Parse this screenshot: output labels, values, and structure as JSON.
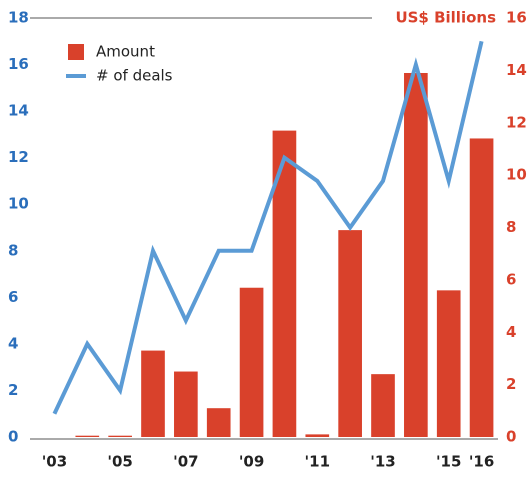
{
  "chart_data": {
    "type": "bar_line",
    "right_axis_label": "US$ Billions",
    "categories": [
      "'03",
      null,
      "'05",
      null,
      "'07",
      null,
      "'09",
      null,
      "'11",
      null,
      "'13",
      null,
      "'15",
      "'16"
    ],
    "series": [
      {
        "name": "Amount",
        "color": "#d9412b",
        "axis": "y2",
        "values": [
          0,
          0.05,
          0.05,
          3.3,
          2.5,
          1.1,
          5.7,
          11.7,
          0.1,
          7.9,
          2.4,
          13.9,
          5.6,
          11.4
        ]
      },
      {
        "name": "# of deals",
        "color": "#5b9bd5",
        "axis": "y",
        "values": [
          1,
          4,
          2,
          8,
          5,
          8,
          8,
          12,
          11,
          9,
          11,
          16,
          11,
          17
        ]
      }
    ],
    "ylim": [
      0,
      18
    ],
    "yticks": [
      0,
      2,
      4,
      6,
      8,
      10,
      12,
      14,
      16,
      18
    ],
    "y2lim": [
      0,
      16
    ],
    "y2ticks": [
      0,
      2,
      4,
      6,
      8,
      10,
      12,
      14,
      16
    ]
  }
}
